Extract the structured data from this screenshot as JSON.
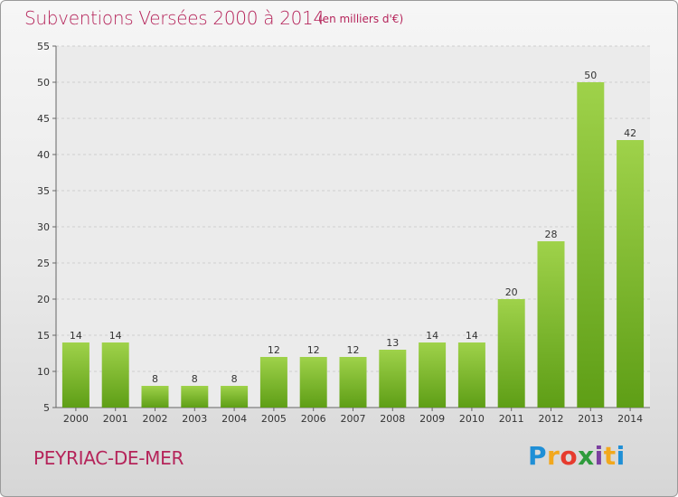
{
  "header": {
    "title": "Subventions Versées 2000 à 2014",
    "unit": "(en milliers d'€)"
  },
  "footer": {
    "place": "PEYRIAC-DE-MER",
    "brand_letters": [
      "P",
      "r",
      "o",
      "x",
      "i",
      "t",
      "i"
    ]
  },
  "colors": {
    "title": "#b5245a",
    "bar_light": "#9fd24a",
    "bar_dark": "#5e9e16"
  },
  "chart_data": {
    "type": "bar",
    "title": "Subventions Versées 2000 à 2014",
    "subtitle": "(en milliers d'€)",
    "categories": [
      "2000",
      "2001",
      "2002",
      "2003",
      "2004",
      "2005",
      "2006",
      "2007",
      "2008",
      "2009",
      "2010",
      "2011",
      "2012",
      "2013",
      "2014"
    ],
    "values": [
      14,
      14,
      8,
      8,
      8,
      12,
      12,
      12,
      13,
      14,
      14,
      20,
      28,
      50,
      42
    ],
    "ylim": [
      5,
      55
    ],
    "yticks": [
      5,
      10,
      15,
      20,
      25,
      30,
      35,
      40,
      45,
      50,
      55
    ],
    "grid": true,
    "xlabel": "",
    "ylabel": ""
  }
}
